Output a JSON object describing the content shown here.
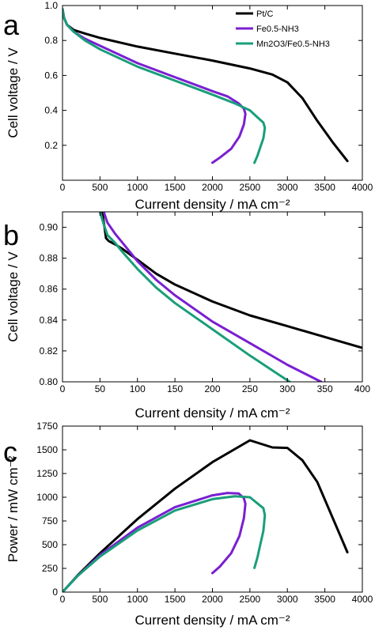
{
  "figure": {
    "panel_labels": [
      "a",
      "b",
      "c"
    ]
  },
  "colors": {
    "Pt/C": "#000000",
    "Fe0.5-NH3": "#7a1fd1",
    "Mn2O3/Fe0.5-NH3": "#1a9e7a"
  },
  "chart_data": [
    {
      "panel": "a",
      "type": "line",
      "xlabel": "Current density / mA cm⁻²",
      "ylabel": "Cell voltage / V",
      "xlim": [
        0,
        4000
      ],
      "ylim": [
        0.0,
        1.0
      ],
      "xticks": [
        0,
        500,
        1000,
        1500,
        2000,
        2500,
        3000,
        3500,
        4000
      ],
      "yticks": [
        0.2,
        0.4,
        0.6,
        0.8,
        1.0
      ],
      "ytick_labels": [
        "0.2",
        "0.4",
        "0.6",
        "0.8",
        "1.0"
      ],
      "legend": {
        "position": "top-right",
        "entries": [
          "Pt/C",
          "Fe0.5-NH3",
          "Mn2O3/Fe0.5-NH3"
        ]
      },
      "series": [
        {
          "name": "Pt/C",
          "x": [
            0,
            20,
            60,
            150,
            300,
            500,
            1000,
            1500,
            2000,
            2500,
            2800,
            3000,
            3200,
            3400,
            3600,
            3800
          ],
          "y": [
            0.98,
            0.93,
            0.89,
            0.86,
            0.84,
            0.815,
            0.765,
            0.725,
            0.685,
            0.64,
            0.605,
            0.56,
            0.47,
            0.34,
            0.22,
            0.11
          ]
        },
        {
          "name": "Fe0.5-NH3",
          "x": [
            0,
            20,
            60,
            150,
            300,
            500,
            1000,
            1500,
            2000,
            2200,
            2350,
            2420,
            2440,
            2420,
            2360,
            2250,
            2100,
            2000
          ],
          "y": [
            0.98,
            0.93,
            0.89,
            0.85,
            0.81,
            0.77,
            0.67,
            0.59,
            0.51,
            0.48,
            0.44,
            0.41,
            0.38,
            0.32,
            0.25,
            0.18,
            0.13,
            0.1
          ]
        },
        {
          "name": "Mn2O3/Fe0.5-NH3",
          "x": [
            0,
            20,
            60,
            150,
            300,
            500,
            1000,
            1500,
            2000,
            2300,
            2500,
            2600,
            2680,
            2700,
            2680,
            2640,
            2600,
            2560
          ],
          "y": [
            0.98,
            0.93,
            0.89,
            0.85,
            0.8,
            0.75,
            0.65,
            0.57,
            0.49,
            0.44,
            0.4,
            0.36,
            0.33,
            0.3,
            0.24,
            0.19,
            0.14,
            0.1
          ]
        }
      ]
    },
    {
      "panel": "b",
      "type": "line",
      "xlabel": "Current density / mA cm⁻²",
      "ylabel": "Cell voltage / V",
      "xlim": [
        0,
        400
      ],
      "ylim": [
        0.8,
        0.91
      ],
      "xticks": [
        0,
        50,
        100,
        150,
        200,
        250,
        300,
        350,
        400
      ],
      "yticks": [
        0.8,
        0.82,
        0.84,
        0.86,
        0.88,
        0.9
      ],
      "ytick_labels": [
        "0.80",
        "0.82",
        "0.84",
        "0.86",
        "0.88",
        "0.90"
      ],
      "series": [
        {
          "name": "Pt/C",
          "x": [
            53,
            56,
            58,
            62,
            70,
            80,
            100,
            125,
            150,
            200,
            250,
            300,
            350,
            400
          ],
          "y": [
            0.91,
            0.9,
            0.893,
            0.891,
            0.889,
            0.886,
            0.879,
            0.87,
            0.863,
            0.852,
            0.843,
            0.836,
            0.829,
            0.822
          ]
        },
        {
          "name": "Fe0.5-NH3",
          "x": [
            55,
            60,
            70,
            80,
            100,
            125,
            150,
            200,
            250,
            300,
            345
          ],
          "y": [
            0.91,
            0.903,
            0.896,
            0.89,
            0.878,
            0.866,
            0.856,
            0.839,
            0.825,
            0.811,
            0.8
          ]
        },
        {
          "name": "Mn2O3/Fe0.5-NH3",
          "x": [
            50,
            55,
            60,
            70,
            80,
            100,
            125,
            150,
            200,
            250,
            303
          ],
          "y": [
            0.91,
            0.902,
            0.895,
            0.89,
            0.884,
            0.873,
            0.861,
            0.851,
            0.834,
            0.817,
            0.8
          ]
        }
      ]
    },
    {
      "panel": "c",
      "type": "line",
      "xlabel": "Current density / mA cm⁻²",
      "ylabel": "Power / mW cm⁻²",
      "xlim": [
        0,
        4000
      ],
      "ylim": [
        0,
        1750
      ],
      "xticks": [
        0,
        500,
        1000,
        1500,
        2000,
        2500,
        3000,
        3500,
        4000
      ],
      "yticks": [
        0,
        250,
        500,
        750,
        1000,
        1250,
        1500,
        1750
      ],
      "ytick_labels": [
        "0",
        "250",
        "500",
        "750",
        "1000",
        "1250",
        "1500",
        "1750"
      ],
      "series": [
        {
          "name": "Pt/C",
          "x": [
            0,
            200,
            500,
            1000,
            1500,
            2000,
            2500,
            2800,
            3000,
            3200,
            3400,
            3600,
            3800
          ],
          "y": [
            0,
            175,
            410,
            770,
            1090,
            1370,
            1600,
            1525,
            1520,
            1390,
            1160,
            790,
            420
          ]
        },
        {
          "name": "Fe0.5-NH3",
          "x": [
            0,
            200,
            500,
            1000,
            1500,
            2000,
            2200,
            2350,
            2420,
            2440,
            2420,
            2360,
            2250,
            2100,
            2000
          ],
          "y": [
            0,
            170,
            390,
            680,
            895,
            1020,
            1045,
            1040,
            990,
            930,
            780,
            590,
            410,
            270,
            200
          ]
        },
        {
          "name": "Mn2O3/Fe0.5-NH3",
          "x": [
            0,
            200,
            500,
            1000,
            1500,
            2000,
            2300,
            2500,
            2600,
            2680,
            2700,
            2680,
            2640,
            2600,
            2560
          ],
          "y": [
            0,
            170,
            375,
            650,
            860,
            980,
            1010,
            1000,
            935,
            885,
            810,
            645,
            505,
            365,
            255
          ]
        }
      ]
    }
  ]
}
